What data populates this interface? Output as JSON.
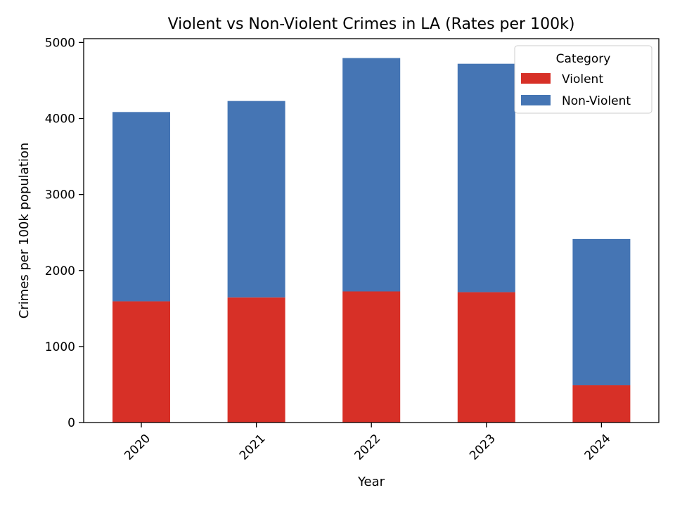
{
  "chart_data": {
    "type": "bar",
    "stacked": true,
    "title": "Violent vs Non-Violent Crimes in LA (Rates per 100k)",
    "xlabel": "Year",
    "ylabel": "Crimes per 100k population",
    "categories": [
      "2020",
      "2021",
      "2022",
      "2023",
      "2024"
    ],
    "series": [
      {
        "name": "Violent",
        "color": "#d73027",
        "values": [
          1595,
          1645,
          1725,
          1715,
          490
        ]
      },
      {
        "name": "Non-Violent",
        "color": "#4575b4",
        "values": [
          2490,
          2585,
          3070,
          3005,
          1925
        ]
      }
    ],
    "ylim": [
      0,
      5050
    ],
    "yticks": [
      0,
      1000,
      2000,
      3000,
      4000,
      5000
    ],
    "xtick_rotation": 45,
    "grid": false,
    "legend": {
      "title": "Category",
      "placement": "top-right"
    }
  }
}
